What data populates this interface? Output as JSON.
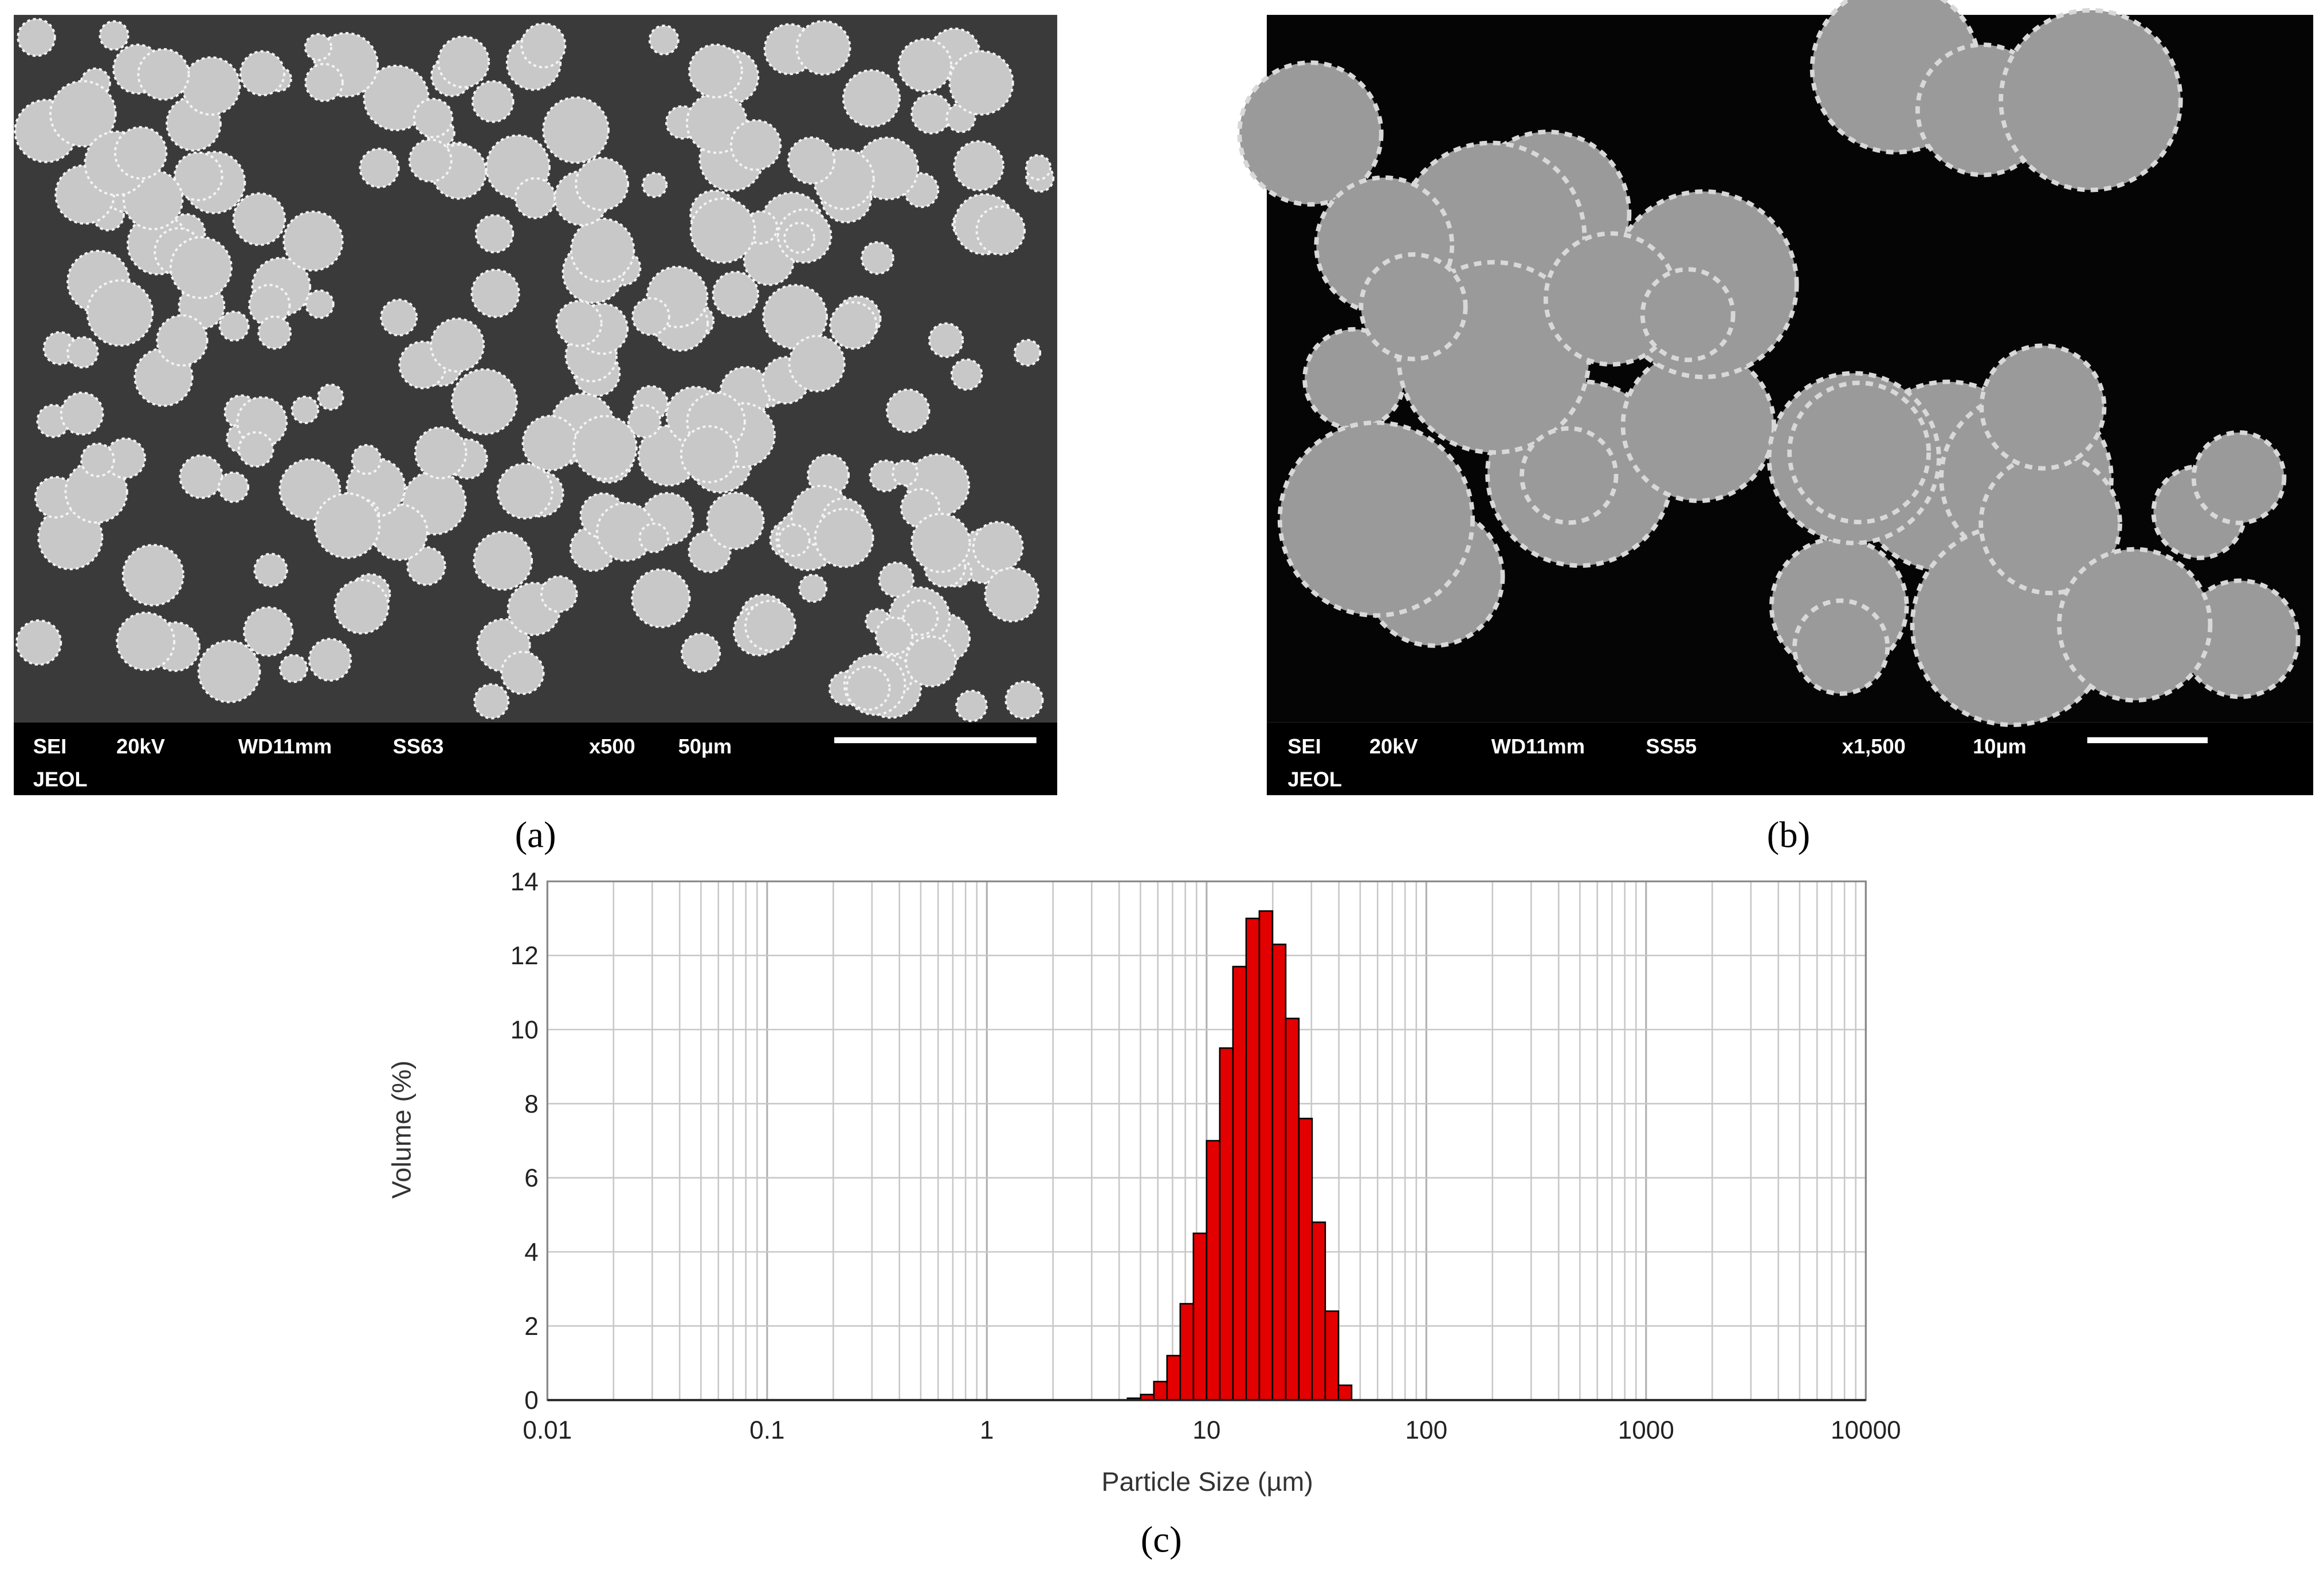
{
  "panels": [
    {
      "caption": "(a)",
      "info": [
        "SEI",
        "20kV",
        "WD11mm",
        "SS63",
        "x500",
        "50µm"
      ],
      "maker": "JEOL"
    },
    {
      "caption": "(b)",
      "info": [
        "SEI",
        "20kV",
        "WD11mm",
        "SS55",
        "x1,500",
        "10µm"
      ],
      "maker": "JEOL"
    }
  ],
  "chart_data": {
    "type": "histogram",
    "caption": "(c)",
    "x_label": "Particle Size (µm)",
    "y_label": "Volume (%)",
    "x_log": true,
    "grid": true,
    "color": "#e30000",
    "bins": [
      4.365,
      5.012,
      5.754,
      6.607,
      7.586,
      8.71,
      10,
      11.48,
      13.18,
      15.14,
      17.38,
      19.95,
      22.91,
      26.3,
      30.2,
      34.67,
      39.81,
      45.71
    ],
    "values": [
      0.05,
      0.15,
      0.5,
      1.2,
      2.6,
      4.5,
      7.0,
      9.5,
      11.7,
      13.0,
      13.2,
      12.3,
      10.3,
      7.6,
      4.8,
      2.4,
      0.4
    ],
    "xlim": [
      0.01,
      10000
    ],
    "xticks": [
      0.01,
      0.1,
      1,
      10,
      100,
      1000,
      10000
    ],
    "xminorticks": [
      0.02,
      0.03,
      0.04,
      0.05,
      0.06,
      0.07,
      0.08,
      0.09,
      0.2,
      0.3,
      0.4,
      0.5,
      0.6,
      0.7,
      0.8,
      0.9,
      2,
      3,
      4,
      5,
      6,
      7,
      8,
      9,
      20,
      30,
      40,
      50,
      60,
      70,
      80,
      90,
      200,
      300,
      400,
      500,
      600,
      700,
      800,
      900,
      2000,
      3000,
      4000,
      5000,
      6000,
      7000,
      8000,
      9000
    ],
    "ylim": [
      0,
      14
    ],
    "yticks": [
      0,
      2,
      4,
      6,
      8,
      10,
      12,
      14
    ]
  }
}
